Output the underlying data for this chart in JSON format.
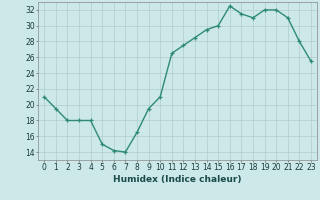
{
  "x": [
    0,
    1,
    2,
    3,
    4,
    5,
    6,
    7,
    8,
    9,
    10,
    11,
    12,
    13,
    14,
    15,
    16,
    17,
    18,
    19,
    20,
    21,
    22,
    23
  ],
  "y": [
    21,
    19.5,
    18,
    18,
    18,
    15,
    14.2,
    14,
    16.5,
    19.5,
    21,
    26.5,
    27.5,
    28.5,
    29.5,
    30,
    32.5,
    31.5,
    31,
    32,
    32,
    31,
    28,
    25.5
  ],
  "line_color": "#2e8b72",
  "marker_color": "#2e8b72",
  "bg_color": "#cce8e8",
  "grid_color": "#b0cccc",
  "xlabel": "Humidex (Indice chaleur)",
  "xlim": [
    -0.5,
    23.5
  ],
  "ylim": [
    13,
    33
  ],
  "yticks": [
    14,
    16,
    18,
    20,
    22,
    24,
    26,
    28,
    30,
    32
  ],
  "xticks": [
    0,
    1,
    2,
    3,
    4,
    5,
    6,
    7,
    8,
    9,
    10,
    11,
    12,
    13,
    14,
    15,
    16,
    17,
    18,
    19,
    20,
    21,
    22,
    23
  ],
  "tick_fontsize": 5.5,
  "xlabel_fontsize": 6.5,
  "marker_size": 3,
  "line_width": 1.0
}
